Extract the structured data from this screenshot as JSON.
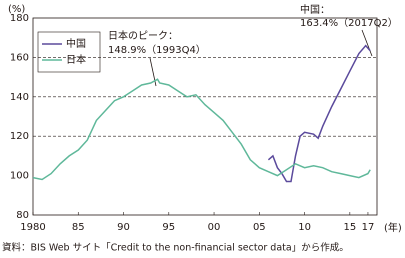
{
  "chart_data": {
    "type": "line",
    "ylabel": "(%)",
    "xlabel": "(年)",
    "xlim": [
      1980,
      2018
    ],
    "ylim": [
      80,
      180
    ],
    "xticks": [
      1980,
      {
        "value": 1985,
        "label": "85"
      },
      {
        "value": 1990,
        "label": "90"
      },
      {
        "value": 1995,
        "label": "95"
      },
      {
        "value": 2000,
        "label": "00"
      },
      {
        "value": 2005,
        "label": "05"
      },
      {
        "value": 2010,
        "label": "10"
      },
      {
        "value": 2015,
        "label": "15"
      },
      {
        "value": 2017,
        "label": "17"
      }
    ],
    "yticks": [
      80,
      100,
      120,
      140,
      160,
      180
    ],
    "grid": true,
    "legend": "upper left",
    "series": [
      {
        "name": "中国",
        "color": "#5b4a9c",
        "x": [
          2006,
          2006.5,
          2007,
          2007.5,
          2008,
          2008.5,
          2009,
          2009.5,
          2010,
          2011,
          2011.5,
          2012,
          2013,
          2014,
          2015,
          2016,
          2016.75,
          2017.25
        ],
        "values": [
          108,
          110,
          104,
          101,
          97,
          97,
          110,
          120,
          122,
          121,
          119,
          125,
          135,
          144,
          153,
          162,
          166,
          163.4
        ]
      },
      {
        "name": "日本",
        "color": "#5fb89a",
        "x": [
          1980,
          1981,
          1982,
          1983,
          1984,
          1985,
          1986,
          1987,
          1988,
          1989,
          1990,
          1991,
          1992,
          1993,
          1993.75,
          1994,
          1995,
          1996,
          1997,
          1998,
          1999,
          2000,
          2001,
          2002,
          2003,
          2004,
          2005,
          2006,
          2007,
          2008,
          2009,
          2010,
          2011,
          2012,
          2013,
          2014,
          2015,
          2016,
          2017,
          2017.25
        ],
        "values": [
          99,
          98,
          101,
          106,
          110,
          113,
          118,
          128,
          133,
          138,
          140,
          143,
          146,
          147,
          148.9,
          147,
          146,
          143,
          140,
          141,
          136,
          132,
          128,
          122,
          116,
          108,
          104,
          102,
          100,
          103,
          106,
          104,
          105,
          104,
          102,
          101,
          100,
          99,
          101,
          103
        ]
      }
    ],
    "annotations": [
      "日本のピーク：",
      "148.9%（1993Q4）",
      "中国：",
      "163.4%（2017Q2）"
    ],
    "source": "資料：BIS Web サイト「Credit to the non-financial sector data」から作成。"
  }
}
